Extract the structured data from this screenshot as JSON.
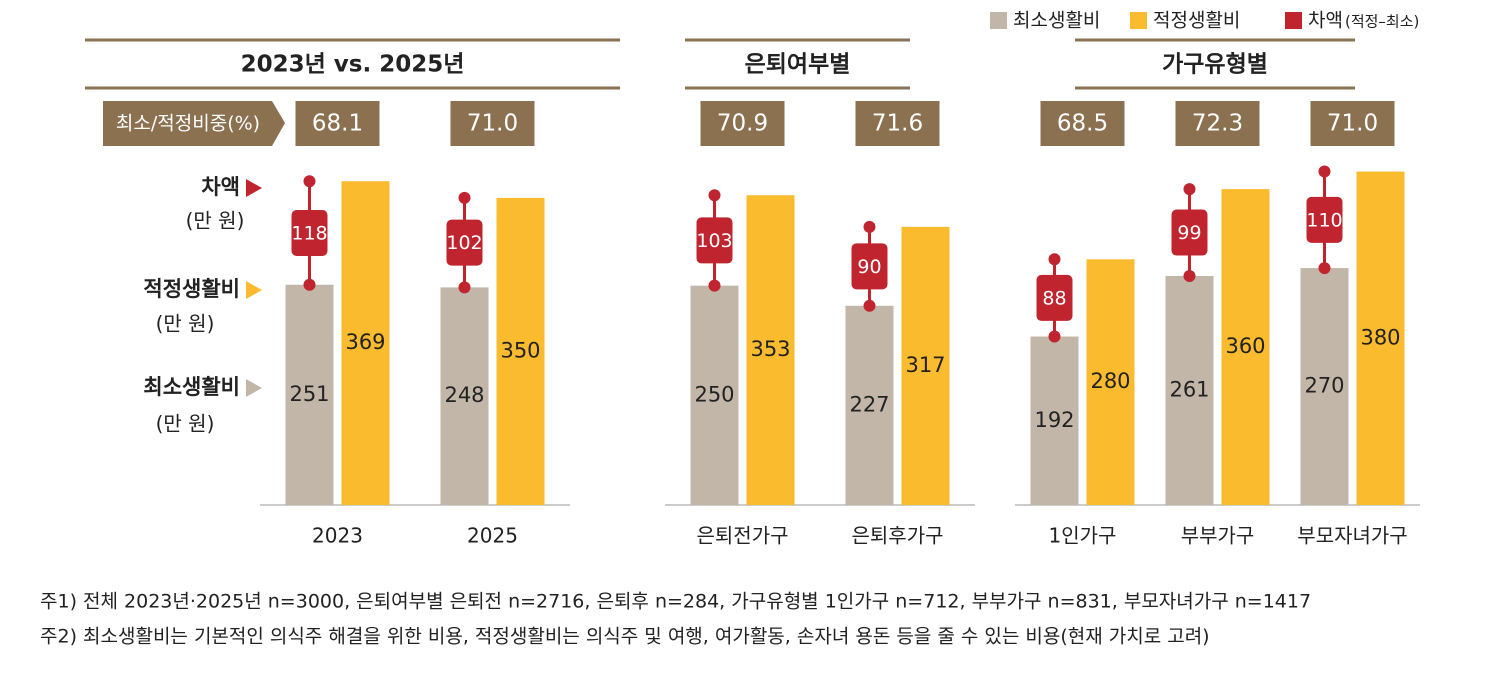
{
  "legend": [
    {
      "name": "최소생활비",
      "color": "#c2b6a8"
    },
    {
      "name": "적정생활비",
      "color": "#fbbb2e"
    },
    {
      "name": "차액",
      "color": "#c0242f",
      "note": "(적정–최소)"
    }
  ],
  "ratio_label": "최소/적정비중(%)",
  "side_labels": [
    "차액",
    "적정생활비",
    "최소생활비"
  ],
  "unit": "(만 원)",
  "chart_data": [
    {
      "type": "bar",
      "title": "2023년 vs. 2025년",
      "categories": [
        "2023",
        "2025"
      ],
      "ratio": [
        68.1,
        71.0
      ],
      "ratio_labels": [
        "68.1",
        "71.0"
      ],
      "series": [
        {
          "color": "#c2b6a8",
          "values": [
            251,
            248
          ]
        },
        {
          "color": "#fbbb2e",
          "values": [
            369,
            350
          ]
        }
      ],
      "diff": [
        118,
        102
      ],
      "ylim": [
        0,
        400
      ]
    },
    {
      "type": "bar",
      "title": "은퇴여부별",
      "categories": [
        "은퇴전가구",
        "은퇴후가구"
      ],
      "ratio": [
        70.9,
        71.6
      ],
      "ratio_labels": [
        "70.9",
        "71.6"
      ],
      "series": [
        {
          "color": "#c2b6a8",
          "values": [
            250,
            227
          ]
        },
        {
          "color": "#fbbb2e",
          "values": [
            353,
            317
          ]
        }
      ],
      "diff": [
        103,
        90
      ],
      "ylim": [
        0,
        400
      ]
    },
    {
      "type": "bar",
      "title": "가구유형별",
      "categories": [
        "1인가구",
        "부부가구",
        "부모자녀가구"
      ],
      "ratio": [
        68.5,
        72.3,
        71.0
      ],
      "ratio_labels": [
        "68.5",
        "72.3",
        "71.0"
      ],
      "series": [
        {
          "color": "#c2b6a8",
          "values": [
            192,
            261,
            270
          ]
        },
        {
          "color": "#fbbb2e",
          "values": [
            280,
            360,
            380
          ]
        }
      ],
      "diff": [
        88,
        99,
        110
      ],
      "ylim": [
        0,
        400
      ]
    }
  ],
  "notes": [
    "주1) 전체 2023년·2025년 n=3000, 은퇴여부별 은퇴전 n=2716, 은퇴후 n=284, 가구유형별 1인가구 n=712, 부부가구 n=831, 부모자녀가구 n=1417",
    "주2) 최소생활비는 기본적인 의식주 해결을 위한 비용,  적정생활비는 의식주 및 여행, 여가활동, 손자녀 용돈 등을 줄 수 있는 비용(현재 가치로 고려)"
  ]
}
